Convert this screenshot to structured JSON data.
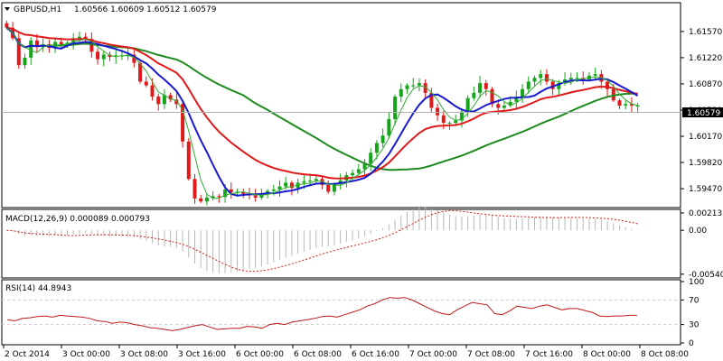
{
  "header": {
    "symbol": "GBPUSD,H1",
    "ohlc": "1.60566 1.60609 1.60512 1.60579"
  },
  "current_price": {
    "label": "1.60579",
    "value": 1.60579
  },
  "indicators": {
    "macd": {
      "label": "MACD(12,26,9) 0.000089 0.000793"
    },
    "rsi": {
      "label": "RSI(14) 44.8943"
    }
  },
  "colors": {
    "bull": "#16a51a",
    "bear": "#e01a1a",
    "sma_fast": "#1a1ad0",
    "ema_mid": "#e01a1a",
    "sma_slow": "#1f8a1f",
    "ema_thin": "#33aa33",
    "macd_hist": "#b8b8b8",
    "macd_signal": "#e01a1a",
    "rsi_line": "#c01a1a",
    "grid": "#c8c8c8",
    "frame": "#000000",
    "price_box": "#000000"
  },
  "chart_data": [
    {
      "type": "candlestick",
      "title": "GBPUSD,H1",
      "ylim": [
        1.59242,
        1.6193
      ],
      "y_ticks": [
        "1.61570",
        "1.61220",
        "1.60870",
        "1.60520",
        "1.60170",
        "1.59820",
        "1.59470"
      ],
      "x_ticks": [
        "2 Oct 2014",
        "3 Oct 00:00",
        "3 Oct 08:00",
        "3 Oct 16:00",
        "6 Oct 00:00",
        "6 Oct 08:00",
        "6 Oct 16:00",
        "7 Oct 00:00",
        "7 Oct 08:00",
        "7 Oct 16:00",
        "8 Oct 00:00",
        "8 Oct 08:00"
      ],
      "close": [
        1.6162,
        1.6148,
        1.6112,
        1.6122,
        1.6145,
        1.6136,
        1.614,
        1.6135,
        1.6143,
        1.614,
        1.6142,
        1.6148,
        1.615,
        1.6147,
        1.613,
        1.612,
        1.6126,
        1.6123,
        1.6125,
        1.6125,
        1.6126,
        1.6115,
        1.609,
        1.6085,
        1.607,
        1.606,
        1.6072,
        1.6066,
        1.606,
        1.601,
        1.596,
        1.5934,
        1.593,
        1.5935,
        1.5937,
        1.5936,
        1.5946,
        1.5942,
        1.5943,
        1.594,
        1.5938,
        1.5935,
        1.594,
        1.5944,
        1.5946,
        1.595,
        1.5955,
        1.5948,
        1.5955,
        1.5957,
        1.5958,
        1.596,
        1.5952,
        1.5943,
        1.5953,
        1.5958,
        1.5965,
        1.5968,
        1.5973,
        1.598,
        1.5995,
        1.6008,
        1.6018,
        1.604,
        1.607,
        1.608,
        1.6085,
        1.6085,
        1.6088,
        1.6075,
        1.6055,
        1.6045,
        1.6035,
        1.6035,
        1.6038,
        1.605,
        1.6068,
        1.6075,
        1.6088,
        1.608,
        1.606,
        1.6055,
        1.6058,
        1.6063,
        1.607,
        1.608,
        1.609,
        1.6095,
        1.61,
        1.609,
        1.608,
        1.6088,
        1.6093,
        1.6095,
        1.6095,
        1.6093,
        1.6098,
        1.61,
        1.609,
        1.608,
        1.6065,
        1.6058,
        1.606,
        1.6058,
        1.6058
      ],
      "open_close_series": [
        {
          "name": "bullish candles",
          "color": "bull"
        },
        {
          "name": "bearish candles",
          "color": "bear"
        }
      ],
      "overlays": [
        {
          "name": "SMA fast",
          "color": "sma_fast"
        },
        {
          "name": "EMA",
          "color": "ema_mid"
        },
        {
          "name": "SMA slow",
          "color": "sma_slow"
        }
      ]
    },
    {
      "type": "bar",
      "title": "MACD(12,26,9)",
      "ylim": [
        -0.00565,
        0.00235
      ],
      "y_ticks": [
        "0.002135",
        "0.00",
        "-0.005403"
      ],
      "legend": [
        "MACD 0.000089",
        "Signal 0.000793"
      ]
    },
    {
      "type": "line",
      "title": "RSI(14)",
      "ylim": [
        0,
        100
      ],
      "y_ticks": [
        "100",
        "70",
        "30",
        "0"
      ],
      "levels": [
        70,
        30
      ],
      "values": [
        38,
        36,
        40,
        41,
        43,
        44,
        42,
        45,
        44,
        43,
        42,
        40,
        36,
        35,
        32,
        34,
        33,
        30,
        28,
        25,
        24,
        22,
        20,
        22,
        25,
        28,
        30,
        26,
        22,
        23,
        24,
        24,
        27,
        26,
        24,
        30,
        32,
        30,
        34,
        36,
        38,
        40,
        43,
        44,
        42,
        46,
        50,
        54,
        60,
        64,
        70,
        74,
        73,
        74,
        70,
        64,
        58,
        52,
        48,
        46,
        54,
        60,
        66,
        64,
        62,
        48,
        46,
        52,
        60,
        58,
        56,
        60,
        62,
        58,
        54,
        56,
        56,
        53,
        50,
        44,
        43,
        44,
        44,
        45,
        45
      ]
    }
  ]
}
